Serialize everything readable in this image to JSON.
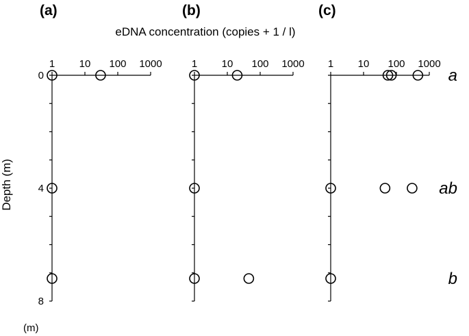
{
  "chart_data": {
    "type": "scatter",
    "title": "eDNA concentration (copies + 1 / l)",
    "ylabel": "Depth (m)",
    "y_unit_label": "(m)",
    "x_scale": "log",
    "x_ticks": [
      "1",
      "10",
      "100",
      "1000"
    ],
    "y_ticks": [
      "0",
      "4",
      "8"
    ],
    "ylim": [
      0,
      8
    ],
    "xlim": [
      1,
      1000
    ],
    "panels": [
      {
        "label": "(a)",
        "points": [
          {
            "x": 1,
            "y": 0
          },
          {
            "x": 30,
            "y": 0
          },
          {
            "x": 1,
            "y": 4
          },
          {
            "x": 1,
            "y": 7.2
          }
        ]
      },
      {
        "label": "(b)",
        "points": [
          {
            "x": 1,
            "y": 0
          },
          {
            "x": 20,
            "y": 0
          },
          {
            "x": 1,
            "y": 4
          },
          {
            "x": 1,
            "y": 7.2
          },
          {
            "x": 45,
            "y": 7.2
          }
        ]
      },
      {
        "label": "(c)",
        "points": [
          {
            "x": 55,
            "y": 0
          },
          {
            "x": 70,
            "y": 0
          },
          {
            "x": 450,
            "y": 0
          },
          {
            "x": 1,
            "y": 4
          },
          {
            "x": 45,
            "y": 4
          },
          {
            "x": 300,
            "y": 4
          },
          {
            "x": 1,
            "y": 7.2
          }
        ]
      }
    ],
    "significance_labels": [
      {
        "depth": 0,
        "text": "a"
      },
      {
        "depth": 4,
        "text": "ab"
      },
      {
        "depth": 7.2,
        "text": "b"
      }
    ]
  }
}
